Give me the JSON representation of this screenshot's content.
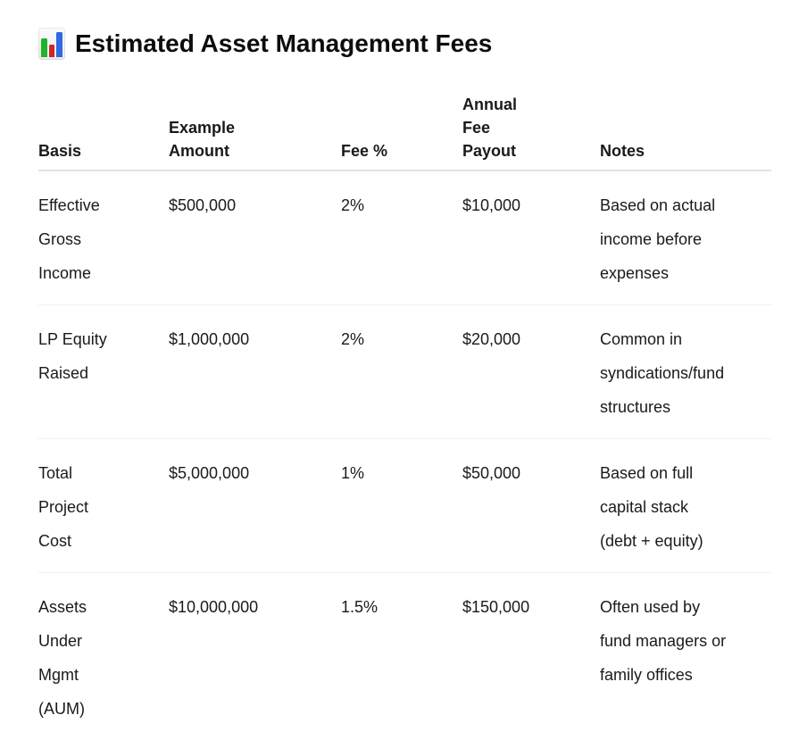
{
  "page": {
    "title": "Estimated Asset Management Fees",
    "title_icon": "bar-chart-icon",
    "background_color": "#ffffff",
    "text_color": "#1a1a1a"
  },
  "icon_colors": {
    "green_bar": "#1fb32e",
    "red_bar": "#cd2727",
    "blue_bar": "#2d6ae3",
    "panel_background": "#ebebeb"
  },
  "border_colors": {
    "header_rule": "#e2e2e2",
    "row_rule": "#f0f0f0"
  },
  "table": {
    "columns": [
      {
        "id": "basis",
        "label": "Basis"
      },
      {
        "id": "example_amount",
        "label": "Example\nAmount"
      },
      {
        "id": "fee_pct",
        "label": "Fee %"
      },
      {
        "id": "annual_fee_payout",
        "label": "Annual\nFee\nPayout"
      },
      {
        "id": "notes",
        "label": "Notes"
      }
    ],
    "rows": [
      {
        "basis": "Effective\nGross\nIncome",
        "example_amount": "$500,000",
        "fee_pct": "2%",
        "annual_fee_payout": "$10,000",
        "notes": "Based on actual\nincome before\nexpenses"
      },
      {
        "basis": "LP Equity\nRaised",
        "example_amount": "$1,000,000",
        "fee_pct": "2%",
        "annual_fee_payout": "$20,000",
        "notes": "Common in\nsyndications/fund\nstructures"
      },
      {
        "basis": "Total\nProject\nCost",
        "example_amount": "$5,000,000",
        "fee_pct": "1%",
        "annual_fee_payout": "$50,000",
        "notes": "Based on full\ncapital stack\n(debt + equity)"
      },
      {
        "basis": "Assets\nUnder\nMgmt\n(AUM)",
        "example_amount": "$10,000,000",
        "fee_pct": "1.5%",
        "annual_fee_payout": "$150,000",
        "notes": "Often used by\nfund managers or\nfamily offices"
      }
    ]
  }
}
